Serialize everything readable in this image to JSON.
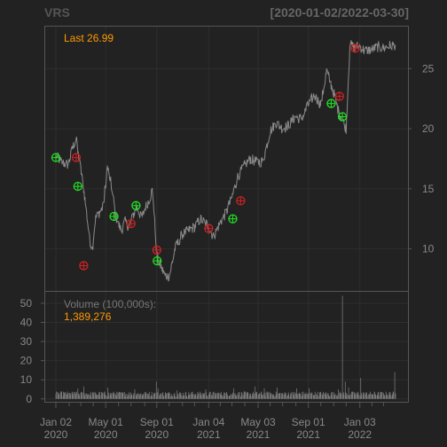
{
  "header": {
    "symbol": "VRS",
    "date_range": "[2020-01-02/2022-03-30]"
  },
  "colors": {
    "background": "#222222",
    "panel_border": "#555555",
    "grid": "#2e2e2e",
    "price_line": "#8a8a8a",
    "volume_bar": "#777777",
    "axis_text": "#888888",
    "label_orange": "#ff9900",
    "buy_marker": "#22dd22",
    "sell_marker": "#cc2222"
  },
  "chart_data": [
    {
      "type": "line",
      "panel": "price",
      "last_label": "Last 26.99",
      "yticks": [
        10,
        15,
        20,
        25
      ],
      "ylim": [
        6.5,
        28.5
      ],
      "xlim": [
        "2020-01-02",
        "2022-03-30"
      ],
      "series": [
        {
          "x": [
            "2020-01-02",
            "2020-01-15",
            "2020-02-01",
            "2020-02-12",
            "2020-02-20",
            "2020-02-24",
            "2020-03-02",
            "2020-03-09",
            "2020-03-16",
            "2020-03-23",
            "2020-03-30",
            "2020-04-06",
            "2020-04-15",
            "2020-04-25",
            "2020-05-05",
            "2020-05-15",
            "2020-05-25",
            "2020-06-01",
            "2020-06-08",
            "2020-06-16",
            "2020-06-26",
            "2020-07-06",
            "2020-07-16",
            "2020-07-26",
            "2020-08-05",
            "2020-08-15",
            "2020-08-22",
            "2020-09-01",
            "2020-09-10",
            "2020-09-20",
            "2020-10-01",
            "2020-10-15",
            "2020-11-01",
            "2020-11-15",
            "2020-12-01",
            "2020-12-15",
            "2021-01-01",
            "2021-01-15",
            "2021-02-01",
            "2021-02-15",
            "2021-03-01",
            "2021-03-15",
            "2021-04-01",
            "2021-04-15",
            "2021-05-01",
            "2021-05-15",
            "2021-06-01",
            "2021-06-15",
            "2021-07-01",
            "2021-07-15",
            "2021-08-01",
            "2021-08-15",
            "2021-09-01",
            "2021-09-15",
            "2021-10-01",
            "2021-10-15",
            "2021-11-01",
            "2021-11-12",
            "2021-11-22",
            "2021-12-01",
            "2021-12-10",
            "2021-12-20",
            "2022-01-01",
            "2022-01-15",
            "2022-02-01",
            "2022-02-15",
            "2022-03-01",
            "2022-03-15",
            "2022-03-30"
          ],
          "values": [
            17.8,
            17.2,
            17.0,
            18.5,
            19.2,
            18.0,
            16.6,
            15.0,
            13.0,
            10.8,
            10.0,
            12.5,
            13.0,
            13.5,
            16.8,
            15.2,
            12.8,
            12.0,
            11.5,
            12.3,
            11.8,
            12.8,
            13.5,
            12.5,
            13.5,
            14.2,
            15.0,
            9.5,
            8.6,
            7.8,
            7.7,
            10.0,
            11.2,
            11.5,
            11.8,
            12.5,
            12.0,
            11.0,
            12.2,
            13.0,
            14.3,
            16.0,
            17.0,
            17.5,
            17.2,
            17.3,
            19.8,
            20.5,
            20.0,
            20.3,
            21.0,
            20.8,
            22.0,
            22.8,
            22.0,
            24.8,
            23.0,
            21.5,
            20.8,
            20.0,
            27.0,
            26.8,
            26.9,
            26.5,
            26.6,
            26.8,
            26.7,
            26.9,
            26.99
          ]
        }
      ],
      "signals": [
        {
          "date": "2020-01-02",
          "price": 17.6,
          "kind": "buy"
        },
        {
          "date": "2020-02-20",
          "price": 17.6,
          "kind": "sell"
        },
        {
          "date": "2020-02-24",
          "price": 15.2,
          "kind": "buy"
        },
        {
          "date": "2020-03-09",
          "price": 8.6,
          "kind": "sell"
        },
        {
          "date": "2020-05-21",
          "price": 12.7,
          "kind": "buy"
        },
        {
          "date": "2020-07-01",
          "price": 12.1,
          "kind": "sell"
        },
        {
          "date": "2020-07-13",
          "price": 13.6,
          "kind": "buy"
        },
        {
          "date": "2020-09-01",
          "price": 9.9,
          "kind": "sell"
        },
        {
          "date": "2020-09-02",
          "price": 9.0,
          "kind": "buy"
        },
        {
          "date": "2021-01-04",
          "price": 11.7,
          "kind": "sell"
        },
        {
          "date": "2021-03-03",
          "price": 12.5,
          "kind": "buy"
        },
        {
          "date": "2021-03-22",
          "price": 14.0,
          "kind": "sell"
        },
        {
          "date": "2021-10-26",
          "price": 22.1,
          "kind": "buy"
        },
        {
          "date": "2021-11-15",
          "price": 22.7,
          "kind": "sell"
        },
        {
          "date": "2021-11-22",
          "price": 21.0,
          "kind": "buy"
        },
        {
          "date": "2021-12-23",
          "price": 26.7,
          "kind": "sell"
        }
      ]
    },
    {
      "type": "bar",
      "panel": "volume",
      "title": "Volume (100,000s):",
      "last_value_label": "1,389,276",
      "yticks": [
        0,
        10,
        20,
        30,
        40,
        50
      ],
      "ylim": [
        -1.5,
        56
      ],
      "baseline": 3.0,
      "spikes": [
        {
          "date": "2020-01-05",
          "value": 4.5
        },
        {
          "date": "2020-02-24",
          "value": 5.5
        },
        {
          "date": "2020-03-09",
          "value": 6.5
        },
        {
          "date": "2020-05-06",
          "value": 6.0
        },
        {
          "date": "2020-07-10",
          "value": 5.0
        },
        {
          "date": "2020-08-31",
          "value": 9.0
        },
        {
          "date": "2020-09-04",
          "value": 5.5
        },
        {
          "date": "2020-10-20",
          "value": 4.5
        },
        {
          "date": "2020-12-28",
          "value": 5.0
        },
        {
          "date": "2021-03-05",
          "value": 5.5
        },
        {
          "date": "2021-04-26",
          "value": 6.5
        },
        {
          "date": "2021-05-18",
          "value": 5.5
        },
        {
          "date": "2021-06-18",
          "value": 6.0
        },
        {
          "date": "2021-08-04",
          "value": 5.5
        },
        {
          "date": "2021-09-03",
          "value": 5.5
        },
        {
          "date": "2021-11-12",
          "value": 5.0
        },
        {
          "date": "2021-11-22",
          "value": 54.0
        },
        {
          "date": "2021-11-29",
          "value": 9.0
        },
        {
          "date": "2021-12-07",
          "value": 6.0
        },
        {
          "date": "2022-01-05",
          "value": 11.0
        },
        {
          "date": "2022-03-28",
          "value": 14.0
        }
      ]
    }
  ],
  "x_axis": {
    "ticks": [
      {
        "date": "2020-01-02",
        "line1": "Jan 02",
        "line2": "2020"
      },
      {
        "date": "2020-05-01",
        "line1": "May 01",
        "line2": "2020"
      },
      {
        "date": "2020-09-01",
        "line1": "Sep 01",
        "line2": "2020"
      },
      {
        "date": "2021-01-04",
        "line1": "Jan 04",
        "line2": "2021"
      },
      {
        "date": "2021-05-03",
        "line1": "May 03",
        "line2": "2021"
      },
      {
        "date": "2021-09-01",
        "line1": "Sep 01",
        "line2": "2021"
      },
      {
        "date": "2022-01-03",
        "line1": "Jan 03",
        "line2": "2022"
      }
    ],
    "minor_ticks": [
      "2020-02-03",
      "2020-03-02",
      "2020-04-01",
      "2020-06-01",
      "2020-07-01",
      "2020-08-03",
      "2020-10-01",
      "2020-11-02",
      "2020-12-01",
      "2021-02-01",
      "2021-03-01",
      "2021-04-01",
      "2021-06-01",
      "2021-07-01",
      "2021-08-02",
      "2021-10-01",
      "2021-11-01",
      "2021-12-01",
      "2022-02-01",
      "2022-03-01"
    ]
  }
}
